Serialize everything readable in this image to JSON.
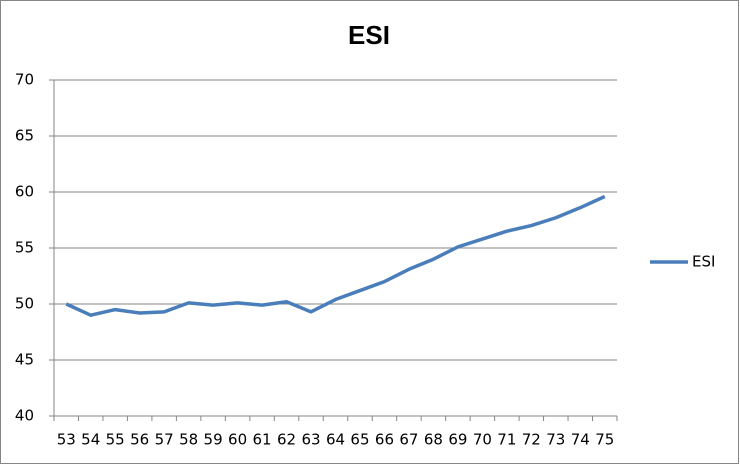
{
  "chart_data": {
    "type": "line",
    "title": "ESI",
    "categories": [
      "53",
      "54",
      "55",
      "56",
      "57",
      "58",
      "59",
      "60",
      "61",
      "62",
      "63",
      "64",
      "65",
      "66",
      "67",
      "68",
      "69",
      "70",
      "71",
      "72",
      "73",
      "74",
      "75"
    ],
    "series": [
      {
        "name": "ESI",
        "color": "#4a7ebb",
        "values": [
          50.0,
          49.0,
          49.5,
          49.2,
          49.3,
          50.1,
          49.9,
          50.1,
          49.9,
          50.2,
          49.3,
          50.4,
          51.2,
          52.0,
          53.1,
          54.0,
          55.1,
          55.8,
          56.5,
          57.0,
          57.7,
          58.6,
          59.6
        ]
      }
    ],
    "ylim": [
      40,
      70
    ],
    "yticks": [
      40,
      45,
      50,
      55,
      60,
      65,
      70
    ],
    "grid": true,
    "legend": "right"
  }
}
